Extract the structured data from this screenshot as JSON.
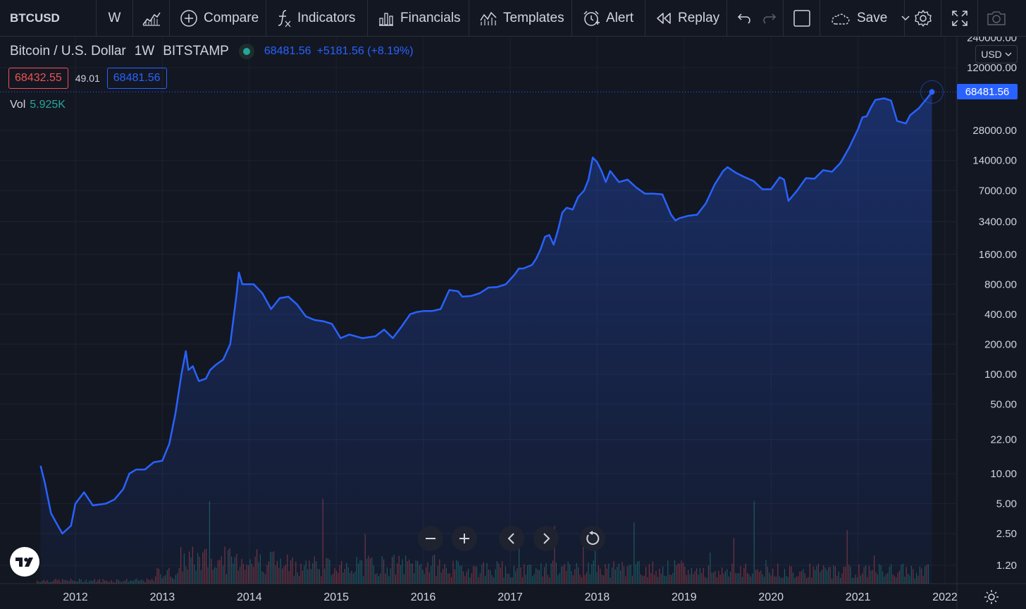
{
  "toolbar": {
    "symbol": "BTCUSD",
    "interval": "W",
    "compare": "Compare",
    "indicators": "Indicators",
    "financials": "Financials",
    "templates": "Templates",
    "alert": "Alert",
    "replay": "Replay",
    "save": "Save"
  },
  "legend": {
    "title": "Bitcoin / U.S. Dollar",
    "interval": "1W",
    "exchange": "BITSTAMP",
    "last": "68481.56",
    "change": "+5181.56 (+8.19%)",
    "bid": "68432.55",
    "spread": "49.01",
    "ask": "68481.56",
    "vol_label": "Vol",
    "vol_value": "5.925K"
  },
  "currency": "USD",
  "price_label": "68481.56",
  "colors": {
    "line": "#2962ff",
    "background": "#131722",
    "grid": "#1e2230",
    "vol_up": "#26a69a",
    "vol_down": "#ef5350"
  },
  "icons": [
    "candles-icon",
    "plus-circle-icon",
    "function-icon",
    "bars-icon",
    "templates-icon",
    "alarm-icon",
    "replay-icon",
    "undo-icon",
    "redo-icon",
    "square-icon",
    "cloud-icon",
    "chevron-down-icon",
    "gear-icon",
    "fullscreen-icon",
    "camera-icon",
    "zoom-out-icon",
    "zoom-in-icon",
    "scroll-left-icon",
    "scroll-right-icon",
    "reset-icon",
    "tradingview-logo-icon",
    "settings-icon"
  ],
  "chart_data": {
    "type": "area",
    "y_scale": "log",
    "grid": true,
    "x_ticks": [
      "2012",
      "2013",
      "2014",
      "2015",
      "2016",
      "2017",
      "2018",
      "2019",
      "2020",
      "2021",
      "2022"
    ],
    "y_ticks": [
      240000,
      120000,
      28000,
      14000,
      7000,
      3400,
      1600,
      800,
      400,
      200,
      100,
      50,
      22,
      10,
      5,
      2.5,
      1.2
    ],
    "y_tick_labels": [
      "240000.00",
      "120000.00",
      "28000.00",
      "14000.00",
      "7000.00",
      "3400.00",
      "1600.00",
      "800.00",
      "400.00",
      "200.00",
      "100.00",
      "50.00",
      "22.00",
      "10.00",
      "5.00",
      "2.50",
      "1.20"
    ],
    "series": [
      {
        "x": [
          2011.6,
          2011.65,
          2011.72,
          2011.78,
          2011.85,
          2011.95,
          2012.0,
          2012.1,
          2012.2,
          2012.35,
          2012.45,
          2012.55,
          2012.62,
          2012.7,
          2012.8,
          2012.9,
          2013.0,
          2013.08,
          2013.15,
          2013.22,
          2013.27,
          2013.3,
          2013.35,
          2013.42,
          2013.5,
          2013.55,
          2013.62,
          2013.7,
          2013.78,
          2013.85,
          2013.88,
          2013.92,
          2013.96,
          2014.05,
          2014.15,
          2014.25,
          2014.35,
          2014.45,
          2014.55,
          2014.65,
          2014.75,
          2014.85,
          2014.95,
          2015.05,
          2015.15,
          2015.3,
          2015.45,
          2015.55,
          2015.65,
          2015.75,
          2015.85,
          2015.92,
          2016.0,
          2016.1,
          2016.2,
          2016.3,
          2016.4,
          2016.45,
          2016.55,
          2016.65,
          2016.75,
          2016.85,
          2016.95,
          2017.05,
          2017.1,
          2017.15,
          2017.25,
          2017.3,
          2017.35,
          2017.4,
          2017.45,
          2017.5,
          2017.55,
          2017.6,
          2017.65,
          2017.72,
          2017.78,
          2017.85,
          2017.9,
          2017.95,
          2018.0,
          2018.05,
          2018.1,
          2018.15,
          2018.25,
          2018.35,
          2018.45,
          2018.55,
          2018.65,
          2018.75,
          2018.85,
          2018.9,
          2018.95,
          2019.05,
          2019.15,
          2019.25,
          2019.35,
          2019.45,
          2019.5,
          2019.6,
          2019.7,
          2019.8,
          2019.9,
          2020.0,
          2020.1,
          2020.15,
          2020.2,
          2020.3,
          2020.4,
          2020.5,
          2020.6,
          2020.7,
          2020.8,
          2020.9,
          2021.0,
          2021.05,
          2021.1,
          2021.15,
          2021.2,
          2021.3,
          2021.38,
          2021.45,
          2021.55,
          2021.6,
          2021.7,
          2021.8,
          2021.85
        ],
        "values": [
          12,
          8,
          4,
          3.2,
          2.5,
          3,
          5,
          6.5,
          4.8,
          5,
          5.5,
          7,
          10,
          11,
          11,
          13,
          13.5,
          20,
          40,
          100,
          170,
          110,
          120,
          85,
          90,
          110,
          125,
          140,
          200,
          600,
          1050,
          800,
          800,
          800,
          650,
          450,
          580,
          600,
          500,
          380,
          350,
          340,
          320,
          230,
          250,
          230,
          240,
          280,
          230,
          300,
          400,
          420,
          430,
          430,
          450,
          700,
          680,
          600,
          610,
          650,
          740,
          750,
          800,
          1000,
          1150,
          1150,
          1250,
          1450,
          1800,
          2400,
          2500,
          2000,
          2800,
          4200,
          4700,
          4500,
          6000,
          7000,
          9000,
          15000,
          13500,
          11000,
          8500,
          11000,
          8500,
          9000,
          7500,
          6500,
          6500,
          6400,
          4000,
          3500,
          3700,
          3900,
          4000,
          5200,
          8000,
          11000,
          12000,
          10500,
          9500,
          8700,
          7200,
          7200,
          9500,
          9000,
          5500,
          7000,
          9300,
          9200,
          11200,
          10800,
          13300,
          19000,
          29000,
          38000,
          39000,
          48000,
          57000,
          59000,
          56000,
          35000,
          33000,
          40000,
          47000,
          60000,
          68481.56
        ]
      }
    ],
    "last_value": 68481.56
  }
}
